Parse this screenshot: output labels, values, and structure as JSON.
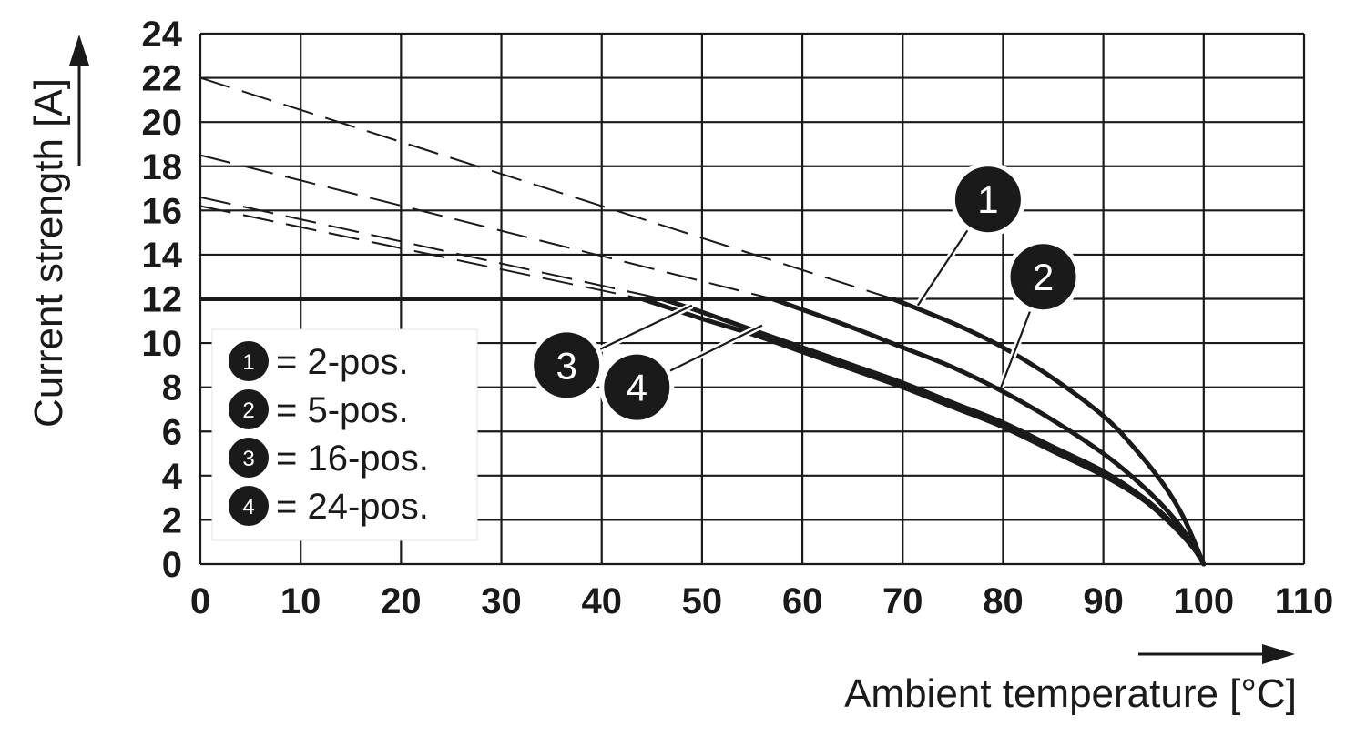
{
  "chart_data": {
    "type": "line",
    "title": "",
    "xlabel": "Ambient temperature [°C]",
    "ylabel": "Current strength [A]",
    "xlim": [
      0,
      110
    ],
    "ylim": [
      0,
      24
    ],
    "x_ticks": [
      "0",
      "10",
      "20",
      "30",
      "40",
      "50",
      "60",
      "70",
      "80",
      "90",
      "100",
      "110"
    ],
    "y_ticks": [
      "0",
      "2",
      "4",
      "6",
      "8",
      "10",
      "12",
      "14",
      "16",
      "18",
      "20",
      "22",
      "24"
    ],
    "grid": true,
    "legend_position": "left",
    "current_limit": 12,
    "series": [
      {
        "name": "2-pos.",
        "marker": "1",
        "dashed": [
          [
            0,
            22.0
          ],
          [
            69.0,
            12.0
          ]
        ],
        "solid": [
          [
            69.0,
            12.0
          ],
          [
            75,
            10.9
          ],
          [
            80,
            9.8
          ],
          [
            85,
            8.4
          ],
          [
            90,
            6.7
          ],
          [
            93,
            5.3
          ],
          [
            96,
            3.6
          ],
          [
            98,
            2.1
          ],
          [
            100,
            0
          ]
        ]
      },
      {
        "name": "5-pos.",
        "marker": "2",
        "dashed": [
          [
            0,
            18.5
          ],
          [
            57.0,
            12.0
          ]
        ],
        "solid": [
          [
            57.0,
            12.0
          ],
          [
            65,
            10.7
          ],
          [
            70,
            9.8
          ],
          [
            75,
            8.9
          ],
          [
            80,
            7.8
          ],
          [
            85,
            6.5
          ],
          [
            90,
            5.0
          ],
          [
            93,
            3.9
          ],
          [
            96,
            2.6
          ],
          [
            98,
            1.5
          ],
          [
            100,
            0
          ]
        ]
      },
      {
        "name": "16-pos.",
        "marker": "3",
        "dashed": [
          [
            0,
            16.6
          ],
          [
            46.0,
            12.0
          ]
        ],
        "solid": [
          [
            46.0,
            12.0
          ],
          [
            50,
            11.4
          ],
          [
            55,
            10.6
          ],
          [
            60,
            9.8
          ],
          [
            65,
            9.0
          ],
          [
            70,
            8.2
          ],
          [
            75,
            7.3
          ],
          [
            80,
            6.4
          ],
          [
            85,
            5.3
          ],
          [
            90,
            4.2
          ],
          [
            94,
            3.0
          ],
          [
            97,
            1.8
          ],
          [
            99,
            0.8
          ],
          [
            100,
            0
          ]
        ]
      },
      {
        "name": "24-pos.",
        "marker": "4",
        "dashed": [
          [
            0,
            16.2
          ],
          [
            44.0,
            12.0
          ]
        ],
        "solid": [
          [
            44.0,
            12.0
          ],
          [
            50,
            11.1
          ],
          [
            55,
            10.4
          ],
          [
            60,
            9.6
          ],
          [
            65,
            8.8
          ],
          [
            70,
            8.0
          ],
          [
            75,
            7.1
          ],
          [
            80,
            6.2
          ],
          [
            85,
            5.1
          ],
          [
            90,
            4.0
          ],
          [
            94,
            2.9
          ],
          [
            97,
            1.7
          ],
          [
            99,
            0.7
          ],
          [
            100,
            0
          ]
        ]
      }
    ],
    "callouts": [
      {
        "marker": "1",
        "at": [
          78.5,
          16.5
        ],
        "points_to": [
          71.5,
          11.7
        ]
      },
      {
        "marker": "2",
        "at": [
          84.0,
          13.0
        ],
        "points_to": [
          79.8,
          8.0
        ]
      },
      {
        "marker": "3",
        "at": [
          36.5,
          9.0
        ],
        "points_to": [
          49.0,
          11.7
        ]
      },
      {
        "marker": "4",
        "at": [
          43.5,
          8.0
        ],
        "points_to": [
          56.0,
          10.8
        ]
      }
    ]
  },
  "legend": {
    "items": [
      {
        "marker": "1",
        "label": "= 2-pos."
      },
      {
        "marker": "2",
        "label": "= 5-pos."
      },
      {
        "marker": "3",
        "label": "= 16-pos."
      },
      {
        "marker": "4",
        "label": "= 24-pos."
      }
    ]
  }
}
